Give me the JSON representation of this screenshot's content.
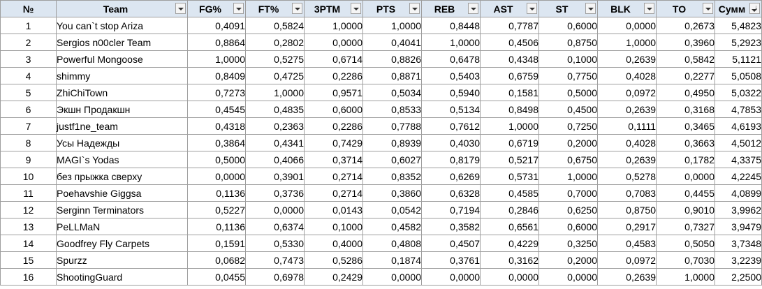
{
  "spreadsheet": {
    "columns": [
      {
        "key": "rank",
        "label": "№",
        "filter": false
      },
      {
        "key": "team",
        "label": "Team",
        "filter": true
      },
      {
        "key": "fg",
        "label": "FG%",
        "filter": true
      },
      {
        "key": "ft",
        "label": "FT%",
        "filter": true
      },
      {
        "key": "tpm",
        "label": "3PTM",
        "filter": true
      },
      {
        "key": "pts",
        "label": "PTS",
        "filter": true
      },
      {
        "key": "reb",
        "label": "REB",
        "filter": true
      },
      {
        "key": "ast",
        "label": "AST",
        "filter": true
      },
      {
        "key": "st",
        "label": "ST",
        "filter": true
      },
      {
        "key": "blk",
        "label": "BLK",
        "filter": true
      },
      {
        "key": "to",
        "label": "TO",
        "filter": true
      },
      {
        "key": "sum",
        "label": "Сумм",
        "filter": true,
        "sorted": "descending"
      }
    ],
    "rows": [
      [
        "1",
        "You can`t stop Ariza",
        "0,4091",
        "0,5824",
        "1,0000",
        "1,0000",
        "0,8448",
        "0,7787",
        "0,6000",
        "0,0000",
        "0,2673",
        "5,4823"
      ],
      [
        "2",
        "Sergios n00cler Team",
        "0,8864",
        "0,2802",
        "0,0000",
        "0,4041",
        "1,0000",
        "0,4506",
        "0,8750",
        "1,0000",
        "0,3960",
        "5,2923"
      ],
      [
        "3",
        "Powerful Mongoose",
        "1,0000",
        "0,5275",
        "0,6714",
        "0,8826",
        "0,6478",
        "0,4348",
        "0,1000",
        "0,2639",
        "0,5842",
        "5,1121"
      ],
      [
        "4",
        "shimmy",
        "0,8409",
        "0,4725",
        "0,2286",
        "0,8871",
        "0,5403",
        "0,6759",
        "0,7750",
        "0,4028",
        "0,2277",
        "5,0508"
      ],
      [
        "5",
        "ZhiChiTown",
        "0,7273",
        "1,0000",
        "0,9571",
        "0,5034",
        "0,5940",
        "0,1581",
        "0,5000",
        "0,0972",
        "0,4950",
        "5,0322"
      ],
      [
        "6",
        "Экшн Продакшн",
        "0,4545",
        "0,4835",
        "0,6000",
        "0,8533",
        "0,5134",
        "0,8498",
        "0,4500",
        "0,2639",
        "0,3168",
        "4,7853"
      ],
      [
        "7",
        "justf1ne_team",
        "0,4318",
        "0,2363",
        "0,2286",
        "0,7788",
        "0,7612",
        "1,0000",
        "0,7250",
        "0,1111",
        "0,3465",
        "4,6193"
      ],
      [
        "8",
        "Усы Надежды",
        "0,3864",
        "0,4341",
        "0,7429",
        "0,8939",
        "0,4030",
        "0,6719",
        "0,2000",
        "0,4028",
        "0,3663",
        "4,5012"
      ],
      [
        "9",
        "MAGI`s Yodas",
        "0,5000",
        "0,4066",
        "0,3714",
        "0,6027",
        "0,8179",
        "0,5217",
        "0,6750",
        "0,2639",
        "0,1782",
        "4,3375"
      ],
      [
        "10",
        "без прыжка сверху",
        "0,0000",
        "0,3901",
        "0,2714",
        "0,8352",
        "0,6269",
        "0,5731",
        "1,0000",
        "0,5278",
        "0,0000",
        "4,2245"
      ],
      [
        "11",
        "Poehavshie Giggsa",
        "0,1136",
        "0,3736",
        "0,2714",
        "0,3860",
        "0,6328",
        "0,4585",
        "0,7000",
        "0,7083",
        "0,4455",
        "4,0899"
      ],
      [
        "12",
        "Serginn Terminators",
        "0,5227",
        "0,0000",
        "0,0143",
        "0,0542",
        "0,7194",
        "0,2846",
        "0,6250",
        "0,8750",
        "0,9010",
        "3,9962"
      ],
      [
        "13",
        "PeLLMaN",
        "0,1136",
        "0,6374",
        "0,1000",
        "0,4582",
        "0,3582",
        "0,6561",
        "0,6000",
        "0,2917",
        "0,7327",
        "3,9479"
      ],
      [
        "14",
        "Goodfrey Fly Carpets",
        "0,1591",
        "0,5330",
        "0,4000",
        "0,4808",
        "0,4507",
        "0,4229",
        "0,3250",
        "0,4583",
        "0,5050",
        "3,7348"
      ],
      [
        "15",
        "Spurzz",
        "0,0682",
        "0,7473",
        "0,5286",
        "0,1874",
        "0,3761",
        "0,3162",
        "0,2000",
        "0,0972",
        "0,7030",
        "3,2239"
      ],
      [
        "16",
        "ShootingGuard",
        "0,0455",
        "0,6978",
        "0,2429",
        "0,0000",
        "0,0000",
        "0,0000",
        "0,0000",
        "0,2639",
        "1,0000",
        "2,2500"
      ]
    ]
  }
}
